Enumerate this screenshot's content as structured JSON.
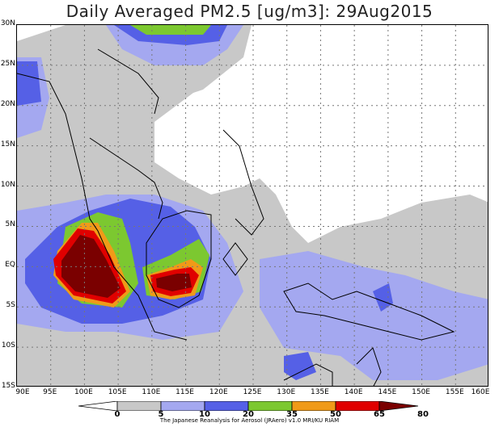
{
  "title": "Daily Averaged PM2.5 [ug/m3]: 29Aug2015",
  "map": {
    "lon_range": [
      90,
      160
    ],
    "lat_range": [
      -15,
      30
    ],
    "lat_labels": [
      "30N",
      "25N",
      "20N",
      "15N",
      "10N",
      "5N",
      "EQ",
      "5S",
      "10S",
      "15S"
    ],
    "lon_labels": [
      "90E",
      "95E",
      "100E",
      "105E",
      "110E",
      "115E",
      "120E",
      "125E",
      "130E",
      "135E",
      "140E",
      "145E",
      "150E",
      "155E",
      "160E"
    ],
    "gridlines": "dotted"
  },
  "legend": {
    "levels": [
      "0",
      "5",
      "10",
      "20",
      "35",
      "50",
      "65",
      "80"
    ],
    "colors": [
      "#ffffff",
      "#c8c8c8",
      "#a4a8f0",
      "#5560e6",
      "#7cc830",
      "#f09a18",
      "#e00000",
      "#7a0000"
    ]
  },
  "credit": "The Japanese Reanalysis for Aerosol (JRAero) v1.0 MRI/KU RIAM"
}
